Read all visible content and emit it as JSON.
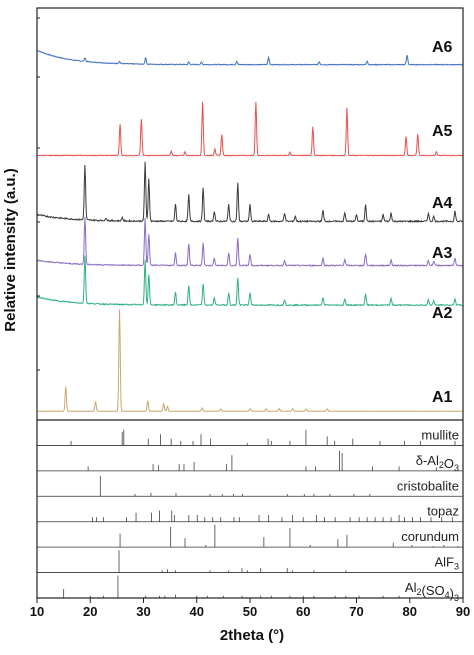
{
  "chart_data": {
    "type": "line",
    "xlabel": "2theta (°)",
    "ylabel": "Relative intensity (a.u.)",
    "xlim": [
      10,
      90
    ],
    "xticks": [
      "10",
      "20",
      "30",
      "40",
      "50",
      "60",
      "70",
      "80",
      "90"
    ],
    "series": [
      {
        "name": "A6",
        "color": "#3d6fc4",
        "baseline": 0.42,
        "noise": 0.05,
        "hump": 1.8,
        "peaks": [
          [
            19.0,
            0.45
          ],
          [
            25.5,
            0.25
          ],
          [
            30.4,
            0.8
          ],
          [
            38.5,
            0.3
          ],
          [
            40.9,
            0.3
          ],
          [
            47.5,
            0.4
          ],
          [
            53.5,
            0.9
          ],
          [
            63.0,
            0.35
          ],
          [
            72.0,
            0.45
          ],
          [
            79.5,
            1.2
          ]
        ]
      },
      {
        "name": "A5",
        "color": "#e8504d",
        "baseline": 0.3,
        "noise": 0.04,
        "hump": 0.0,
        "peaks": [
          [
            25.6,
            3.7
          ],
          [
            29.6,
            4.3
          ],
          [
            35.2,
            0.5
          ],
          [
            37.8,
            0.4
          ],
          [
            41.1,
            6.3
          ],
          [
            43.4,
            0.8
          ],
          [
            44.7,
            2.5
          ],
          [
            51.1,
            6.3
          ],
          [
            57.5,
            0.4
          ],
          [
            61.8,
            3.4
          ],
          [
            68.2,
            5.6
          ],
          [
            79.3,
            2.2
          ],
          [
            81.5,
            2.5
          ],
          [
            85.0,
            0.4
          ]
        ]
      },
      {
        "name": "A4",
        "color": "#3a3a3a",
        "baseline": 0.55,
        "noise": 0.08,
        "hump": 0.8,
        "peaks": [
          [
            19.0,
            6.4
          ],
          [
            23.0,
            0.3
          ],
          [
            26.0,
            0.4
          ],
          [
            30.3,
            7.0
          ],
          [
            31.0,
            5.0
          ],
          [
            36.0,
            2.0
          ],
          [
            38.5,
            3.1
          ],
          [
            41.2,
            3.9
          ],
          [
            43.3,
            1.2
          ],
          [
            46.0,
            2.0
          ],
          [
            47.7,
            4.5
          ],
          [
            50.0,
            2.0
          ],
          [
            53.5,
            0.8
          ],
          [
            56.5,
            1.0
          ],
          [
            58.5,
            0.6
          ],
          [
            63.7,
            1.3
          ],
          [
            67.8,
            1.0
          ],
          [
            70.0,
            0.8
          ],
          [
            71.7,
            2.0
          ],
          [
            75.0,
            0.8
          ],
          [
            76.5,
            1.0
          ],
          [
            83.5,
            1.0
          ],
          [
            84.5,
            0.6
          ],
          [
            88.5,
            1.2
          ]
        ]
      },
      {
        "name": "A3",
        "color": "#8b6cc4",
        "baseline": 0.5,
        "noise": 0.06,
        "hump": 0.6,
        "peaks": [
          [
            19.0,
            5.3
          ],
          [
            30.3,
            5.3
          ],
          [
            31.0,
            3.5
          ],
          [
            36.0,
            1.4
          ],
          [
            38.5,
            2.4
          ],
          [
            41.2,
            2.5
          ],
          [
            43.3,
            0.8
          ],
          [
            46.0,
            1.4
          ],
          [
            47.7,
            3.1
          ],
          [
            50.0,
            1.3
          ],
          [
            56.5,
            0.6
          ],
          [
            63.7,
            0.8
          ],
          [
            67.8,
            0.7
          ],
          [
            71.7,
            1.3
          ],
          [
            76.5,
            0.6
          ],
          [
            83.5,
            0.6
          ],
          [
            84.5,
            0.5
          ],
          [
            88.5,
            0.8
          ]
        ]
      },
      {
        "name": "A2",
        "color": "#2eb082",
        "baseline": 0.55,
        "noise": 0.06,
        "hump": 0.9,
        "peaks": [
          [
            19.0,
            5.3
          ],
          [
            30.3,
            5.0
          ],
          [
            31.0,
            3.3
          ],
          [
            36.0,
            1.4
          ],
          [
            38.5,
            2.2
          ],
          [
            41.2,
            2.4
          ],
          [
            43.3,
            0.8
          ],
          [
            46.0,
            1.4
          ],
          [
            47.7,
            3.0
          ],
          [
            50.0,
            1.4
          ],
          [
            56.5,
            0.6
          ],
          [
            63.7,
            0.8
          ],
          [
            67.8,
            0.7
          ],
          [
            71.7,
            1.2
          ],
          [
            76.5,
            0.7
          ],
          [
            83.5,
            0.6
          ],
          [
            84.5,
            0.5
          ],
          [
            88.5,
            0.7
          ]
        ]
      },
      {
        "name": "A1",
        "color": "#c9a870",
        "baseline": 0.1,
        "noise": 0.02,
        "hump": 0.0,
        "peaks": [
          [
            15.4,
            3.1
          ],
          [
            21.0,
            1.2
          ],
          [
            25.5,
            12.7
          ],
          [
            30.8,
            1.3
          ],
          [
            33.8,
            0.9
          ],
          [
            34.5,
            0.6
          ],
          [
            41.0,
            0.4
          ],
          [
            44.5,
            0.3
          ],
          [
            50.0,
            0.3
          ],
          [
            53.0,
            0.3
          ],
          [
            55.5,
            0.3
          ],
          [
            58.0,
            0.3
          ],
          [
            60.5,
            0.3
          ],
          [
            64.5,
            0.3
          ]
        ]
      }
    ],
    "reference_patterns": [
      {
        "name": "mullite",
        "lines": [
          [
            16.4,
            0.2
          ],
          [
            26.0,
            0.6
          ],
          [
            26.3,
            0.7
          ],
          [
            30.9,
            0.3
          ],
          [
            33.2,
            0.5
          ],
          [
            35.2,
            0.3
          ],
          [
            37.0,
            0.2
          ],
          [
            39.3,
            0.2
          ],
          [
            40.8,
            0.5
          ],
          [
            42.6,
            0.3
          ],
          [
            49.5,
            0.1
          ],
          [
            53.4,
            0.3
          ],
          [
            54.0,
            0.2
          ],
          [
            57.5,
            0.2
          ],
          [
            60.5,
            0.7
          ],
          [
            64.5,
            0.4
          ],
          [
            65.9,
            0.2
          ],
          [
            69.3,
            0.3
          ],
          [
            74.4,
            0.2
          ],
          [
            79.0,
            0.2
          ],
          [
            82.0,
            0.2
          ],
          [
            88.5,
            0.2
          ]
        ]
      },
      {
        "name": "δ-Al2O3",
        "lines": [
          [
            19.6,
            0.2
          ],
          [
            31.8,
            0.3
          ],
          [
            32.8,
            0.25
          ],
          [
            36.7,
            0.3
          ],
          [
            37.6,
            0.3
          ],
          [
            39.5,
            0.4
          ],
          [
            45.6,
            0.3
          ],
          [
            46.6,
            0.7
          ],
          [
            60.5,
            0.2
          ],
          [
            62.3,
            0.2
          ],
          [
            66.8,
            0.9
          ],
          [
            67.3,
            0.8
          ],
          [
            73.0,
            0.2
          ],
          [
            78.0,
            0.2
          ],
          [
            85.0,
            0.15
          ]
        ]
      },
      {
        "name": "cristobalite",
        "lines": [
          [
            21.9,
            0.9
          ],
          [
            28.4,
            0.1
          ],
          [
            31.4,
            0.15
          ],
          [
            36.1,
            0.15
          ],
          [
            42.5,
            0.1
          ],
          [
            44.8,
            0.1
          ],
          [
            46.9,
            0.1
          ],
          [
            48.6,
            0.1
          ],
          [
            57.0,
            0.1
          ],
          [
            60.2,
            0.1
          ],
          [
            62.0,
            0.1
          ],
          [
            65.0,
            0.1
          ],
          [
            69.5,
            0.1
          ],
          [
            72.5,
            0.1
          ]
        ]
      },
      {
        "name": "topaz",
        "lines": [
          [
            20.4,
            0.2
          ],
          [
            21.2,
            0.2
          ],
          [
            22.5,
            0.2
          ],
          [
            26.8,
            0.2
          ],
          [
            28.6,
            0.4
          ],
          [
            31.5,
            0.4
          ],
          [
            33.0,
            0.5
          ],
          [
            35.3,
            0.5
          ],
          [
            35.8,
            0.3
          ],
          [
            38.5,
            0.3
          ],
          [
            40.1,
            0.3
          ],
          [
            41.5,
            0.2
          ],
          [
            43.0,
            0.2
          ],
          [
            44.5,
            0.2
          ],
          [
            47.0,
            0.2
          ],
          [
            48.0,
            0.2
          ],
          [
            51.7,
            0.3
          ],
          [
            53.5,
            0.3
          ],
          [
            56.0,
            0.2
          ],
          [
            58.0,
            0.3
          ],
          [
            60.0,
            0.2
          ],
          [
            62.5,
            0.3
          ],
          [
            64.0,
            0.2
          ],
          [
            66.0,
            0.2
          ],
          [
            68.8,
            0.2
          ],
          [
            70.5,
            0.2
          ],
          [
            72.0,
            0.2
          ],
          [
            73.5,
            0.2
          ],
          [
            75.0,
            0.2
          ],
          [
            76.5,
            0.2
          ],
          [
            78.0,
            0.3
          ],
          [
            79.0,
            0.2
          ],
          [
            80.5,
            0.2
          ],
          [
            82.0,
            0.2
          ],
          [
            84.0,
            0.2
          ],
          [
            86.0,
            0.2
          ],
          [
            88.0,
            0.2
          ]
        ]
      },
      {
        "name": "corundum",
        "lines": [
          [
            25.6,
            0.6
          ],
          [
            35.1,
            0.9
          ],
          [
            37.8,
            0.4
          ],
          [
            41.7,
            0.1
          ],
          [
            43.4,
            1.0
          ],
          [
            52.6,
            0.45
          ],
          [
            57.5,
            0.85
          ],
          [
            61.3,
            0.1
          ],
          [
            66.5,
            0.35
          ],
          [
            68.2,
            0.55
          ],
          [
            76.9,
            0.2
          ],
          [
            80.4,
            0.1
          ],
          [
            84.4,
            0.05
          ],
          [
            86.4,
            0.1
          ],
          [
            89.0,
            0.05
          ]
        ]
      },
      {
        "name": "AlF3",
        "lines": [
          [
            25.4,
            1.0
          ],
          [
            33.5,
            0.1
          ],
          [
            34.5,
            0.15
          ],
          [
            36.0,
            0.1
          ],
          [
            42.5,
            0.1
          ],
          [
            46.0,
            0.1
          ],
          [
            48.5,
            0.2
          ],
          [
            49.5,
            0.1
          ],
          [
            52.0,
            0.2
          ],
          [
            57.0,
            0.2
          ],
          [
            58.0,
            0.1
          ],
          [
            62.0,
            0.1
          ],
          [
            68.0,
            0.1
          ]
        ]
      },
      {
        "name": "Al2(SO4)3",
        "lines": [
          [
            15.0,
            0.4
          ],
          [
            20.0,
            0.1
          ],
          [
            22.5,
            0.1
          ],
          [
            25.2,
            1.0
          ],
          [
            30.4,
            0.1
          ],
          [
            33.0,
            0.1
          ],
          [
            34.0,
            0.1
          ],
          [
            36.0,
            0.15
          ],
          [
            40.0,
            0.1
          ],
          [
            42.0,
            0.1
          ],
          [
            45.0,
            0.1
          ],
          [
            48.5,
            0.1
          ],
          [
            52.0,
            0.1
          ],
          [
            54.0,
            0.1
          ],
          [
            57.5,
            0.1
          ],
          [
            60.0,
            0.1
          ],
          [
            62.0,
            0.1
          ],
          [
            66.0,
            0.1
          ],
          [
            68.0,
            0.1
          ],
          [
            70.5,
            0.1
          ],
          [
            75.0,
            0.1
          ],
          [
            78.0,
            0.1
          ]
        ]
      }
    ]
  }
}
